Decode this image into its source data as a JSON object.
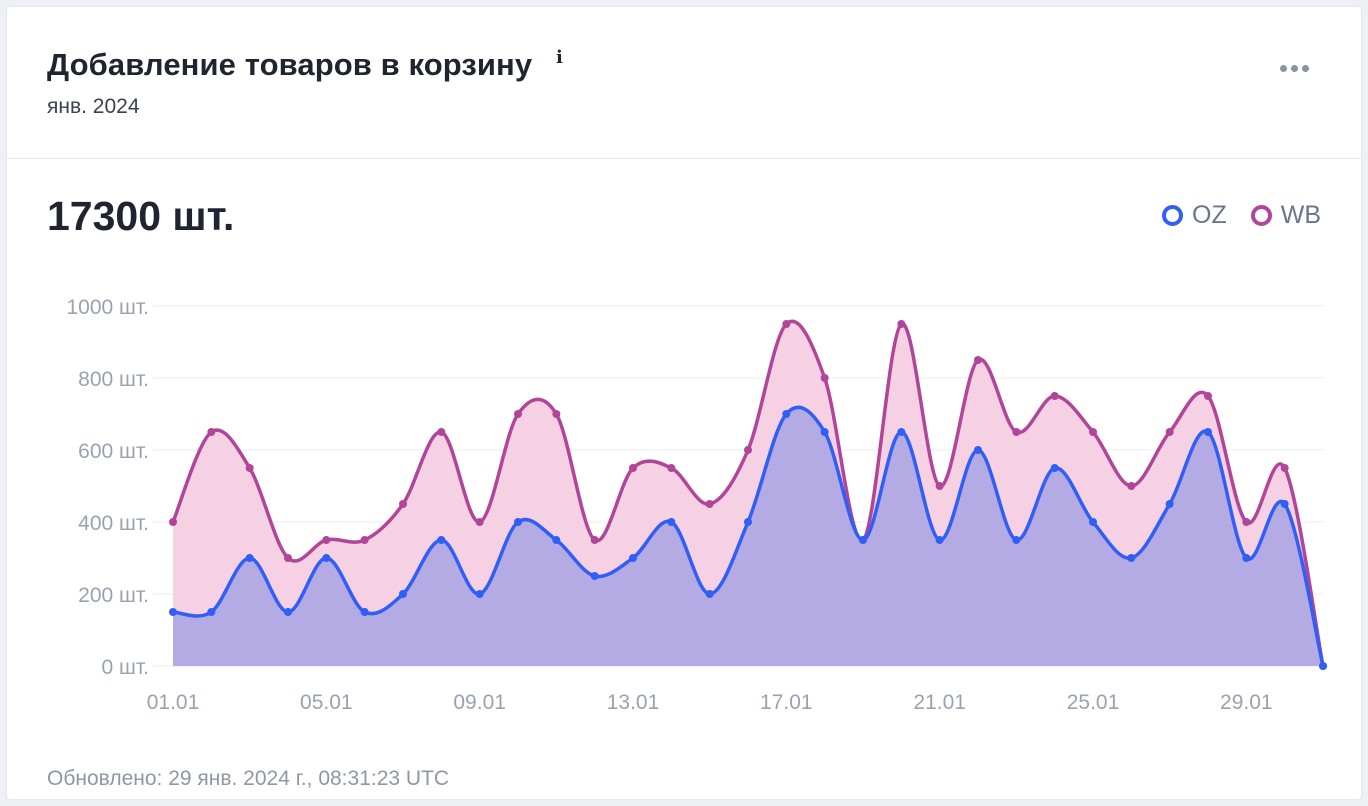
{
  "header": {
    "title": "Добавление товаров в корзину",
    "info_icon": "info-icon",
    "subtitle": "янв. 2024",
    "menu_icon": "more-horizontal-icon"
  },
  "summary": {
    "total": "17300 шт."
  },
  "legend": [
    {
      "name": "OZ",
      "color": "#2f5ff5"
    },
    {
      "name": "WB",
      "color": "#b0459a"
    }
  ],
  "footer": {
    "updated": "Обновлено: 29 янв. 2024 г., 08:31:23 UTC"
  },
  "chart_data": {
    "type": "area",
    "ylim": [
      0,
      1000
    ],
    "y_ticks": [
      0,
      200,
      400,
      600,
      800,
      1000
    ],
    "y_tick_labels": [
      "0 шт.",
      "200 шт.",
      "400 шт.",
      "600 шт.",
      "800 шт.",
      "1000 шт."
    ],
    "x_tick_labels": [
      "01.01",
      "05.01",
      "09.01",
      "13.01",
      "17.01",
      "21.01",
      "25.01",
      "29.01"
    ],
    "x_tick_indices": [
      0,
      4,
      8,
      12,
      16,
      20,
      24,
      28
    ],
    "grid": true,
    "legend_position": "top-right",
    "categories": [
      "01.01",
      "02.01",
      "03.01",
      "04.01",
      "05.01",
      "06.01",
      "07.01",
      "08.01",
      "09.01",
      "10.01",
      "11.01",
      "12.01",
      "13.01",
      "14.01",
      "15.01",
      "16.01",
      "17.01",
      "18.01",
      "19.01",
      "20.01",
      "21.01",
      "22.01",
      "23.01",
      "24.01",
      "25.01",
      "26.01",
      "27.01",
      "28.01",
      "29.01",
      "30.01",
      "31.01"
    ],
    "series": [
      {
        "name": "WB",
        "color": "#b0459a",
        "fill": "#f5cfe2",
        "values": [
          400,
          650,
          550,
          300,
          350,
          350,
          450,
          650,
          400,
          700,
          700,
          350,
          550,
          550,
          450,
          600,
          950,
          800,
          350,
          950,
          500,
          850,
          650,
          750,
          650,
          500,
          650,
          750,
          400,
          550,
          0
        ]
      },
      {
        "name": "OZ",
        "color": "#2f5ff5",
        "fill": "#b0a9e4",
        "values": [
          150,
          150,
          300,
          150,
          300,
          150,
          200,
          350,
          200,
          400,
          350,
          250,
          300,
          400,
          200,
          400,
          700,
          650,
          350,
          650,
          350,
          600,
          350,
          550,
          400,
          300,
          450,
          650,
          300,
          450,
          0
        ]
      }
    ]
  }
}
